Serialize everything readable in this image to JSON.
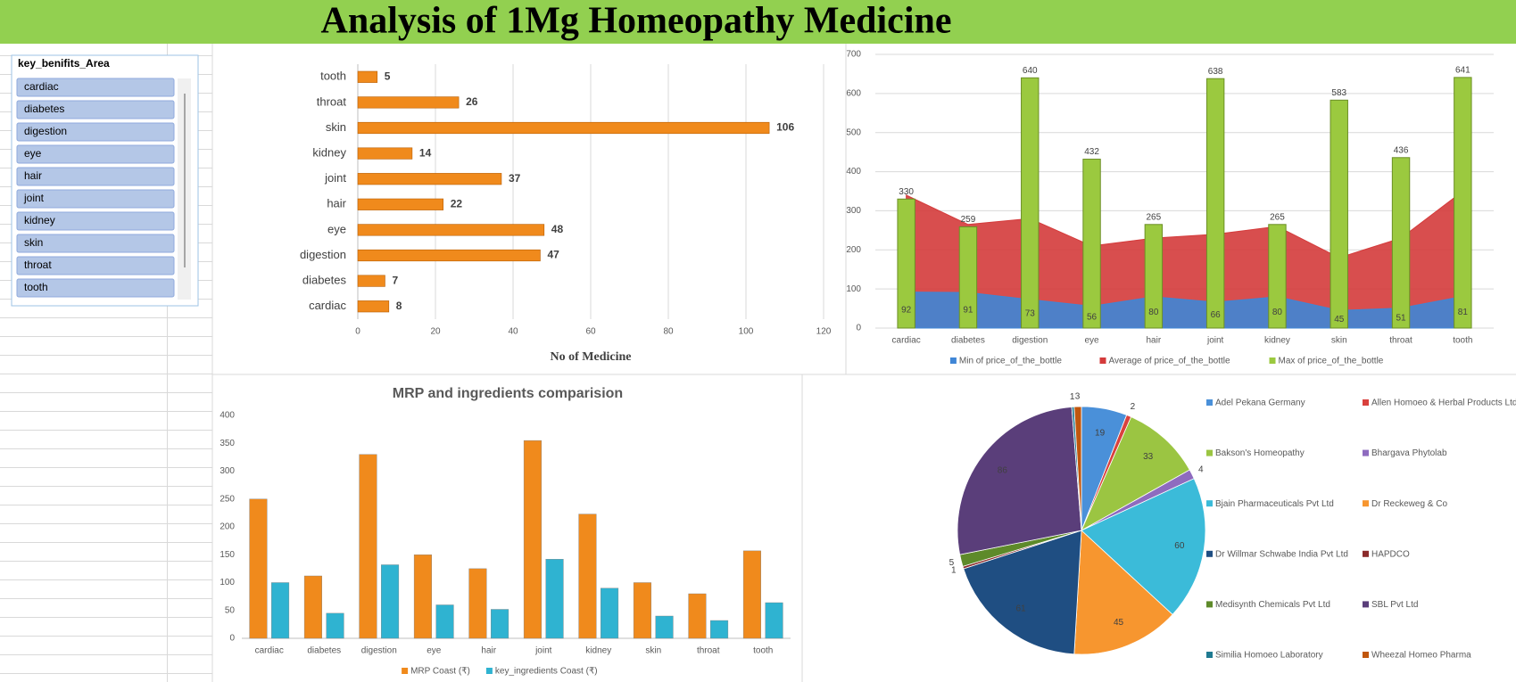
{
  "header": {
    "title": "Analysis of 1Mg Homeopathy Medicine"
  },
  "slicer": {
    "title": "key_benifits_Area",
    "items": [
      "cardiac",
      "diabetes",
      "digestion",
      "eye",
      "hair",
      "joint",
      "kidney",
      "skin",
      "throat",
      "tooth"
    ]
  },
  "chart_data": [
    {
      "type": "hbar",
      "x_label": "No of Medicine",
      "categories": [
        "cardiac",
        "diabetes",
        "digestion",
        "eye",
        "hair",
        "joint",
        "kidney",
        "skin",
        "throat",
        "tooth"
      ],
      "values": [
        8,
        7,
        47,
        48,
        22,
        37,
        14,
        106,
        26,
        5
      ],
      "color": "#f08a1c",
      "xlim": [
        0,
        120
      ],
      "xticks": [
        0,
        20,
        40,
        60,
        80,
        100,
        120
      ],
      "grid": true
    },
    {
      "type": "combo",
      "categories": [
        "cardiac",
        "diabetes",
        "digestion",
        "eye",
        "hair",
        "joint",
        "kidney",
        "skin",
        "throat",
        "tooth"
      ],
      "series": [
        {
          "name": "Min of price_of_the_bottle",
          "color": "#3f86d6",
          "kind": "area",
          "values": [
            92,
            91,
            73,
            56,
            80,
            66,
            80,
            45,
            51,
            81
          ]
        },
        {
          "name": "Average of price_of_the_bottle",
          "color": "#d43b3b",
          "kind": "area",
          "values": [
            340,
            265,
            280,
            210,
            230,
            240,
            260,
            180,
            230,
            350
          ]
        },
        {
          "name": "Max of price_of_the_bottle",
          "color": "#9bc93f",
          "kind": "bar",
          "values": [
            330,
            259,
            640,
            432,
            265,
            638,
            265,
            583,
            436,
            641
          ]
        }
      ],
      "labelled_series": [
        0,
        2
      ],
      "ylim": [
        0,
        700
      ],
      "yticks": [
        0,
        100,
        200,
        300,
        400,
        500,
        600,
        700
      ],
      "grid": true
    },
    {
      "type": "bar",
      "title": "MRP and ingredients comparision",
      "categories": [
        "cardiac",
        "diabetes",
        "digestion",
        "eye",
        "hair",
        "joint",
        "kidney",
        "skin",
        "throat",
        "tooth"
      ],
      "series": [
        {
          "name": "MRP Coast (₹)",
          "color": "#f08a1c",
          "values": [
            250,
            112,
            330,
            150,
            125,
            355,
            223,
            100,
            80,
            157
          ]
        },
        {
          "name": "key_ingredients Coast (₹)",
          "color": "#2fb3d1",
          "values": [
            100,
            45,
            132,
            60,
            52,
            142,
            90,
            40,
            32,
            64
          ]
        }
      ],
      "ylim": [
        0,
        400
      ],
      "yticks": [
        0,
        50,
        100,
        150,
        200,
        250,
        300,
        350,
        400
      ],
      "grid": false
    },
    {
      "type": "pie",
      "categories": [
        "Adel Pekana Germany",
        "Allen Homoeo & Herbal Products Ltd",
        "Bakson's Homeopathy",
        "Bhargava Phytolab",
        "Bjain Pharmaceuticals Pvt Ltd",
        "Dr Reckeweg & Co",
        "Dr Willmar Schwabe India Pvt Ltd",
        "HAPDCO",
        "Medisynth Chemicals Pvt Ltd",
        "SBL Pvt Ltd",
        "Similia Homoeo Laboratory",
        "Wheezal Homeo Pharma"
      ],
      "values": [
        19,
        2,
        33,
        4,
        60,
        45,
        61,
        1,
        5,
        86,
        1,
        3
      ],
      "colors": [
        "#4a90d9",
        "#d9413d",
        "#9bc542",
        "#8e6bbf",
        "#3bbbd9",
        "#f7962f",
        "#1f4e82",
        "#8b2b2b",
        "#5e8a2a",
        "#5a3e7a",
        "#1f7a91",
        "#c0560d"
      ]
    }
  ]
}
